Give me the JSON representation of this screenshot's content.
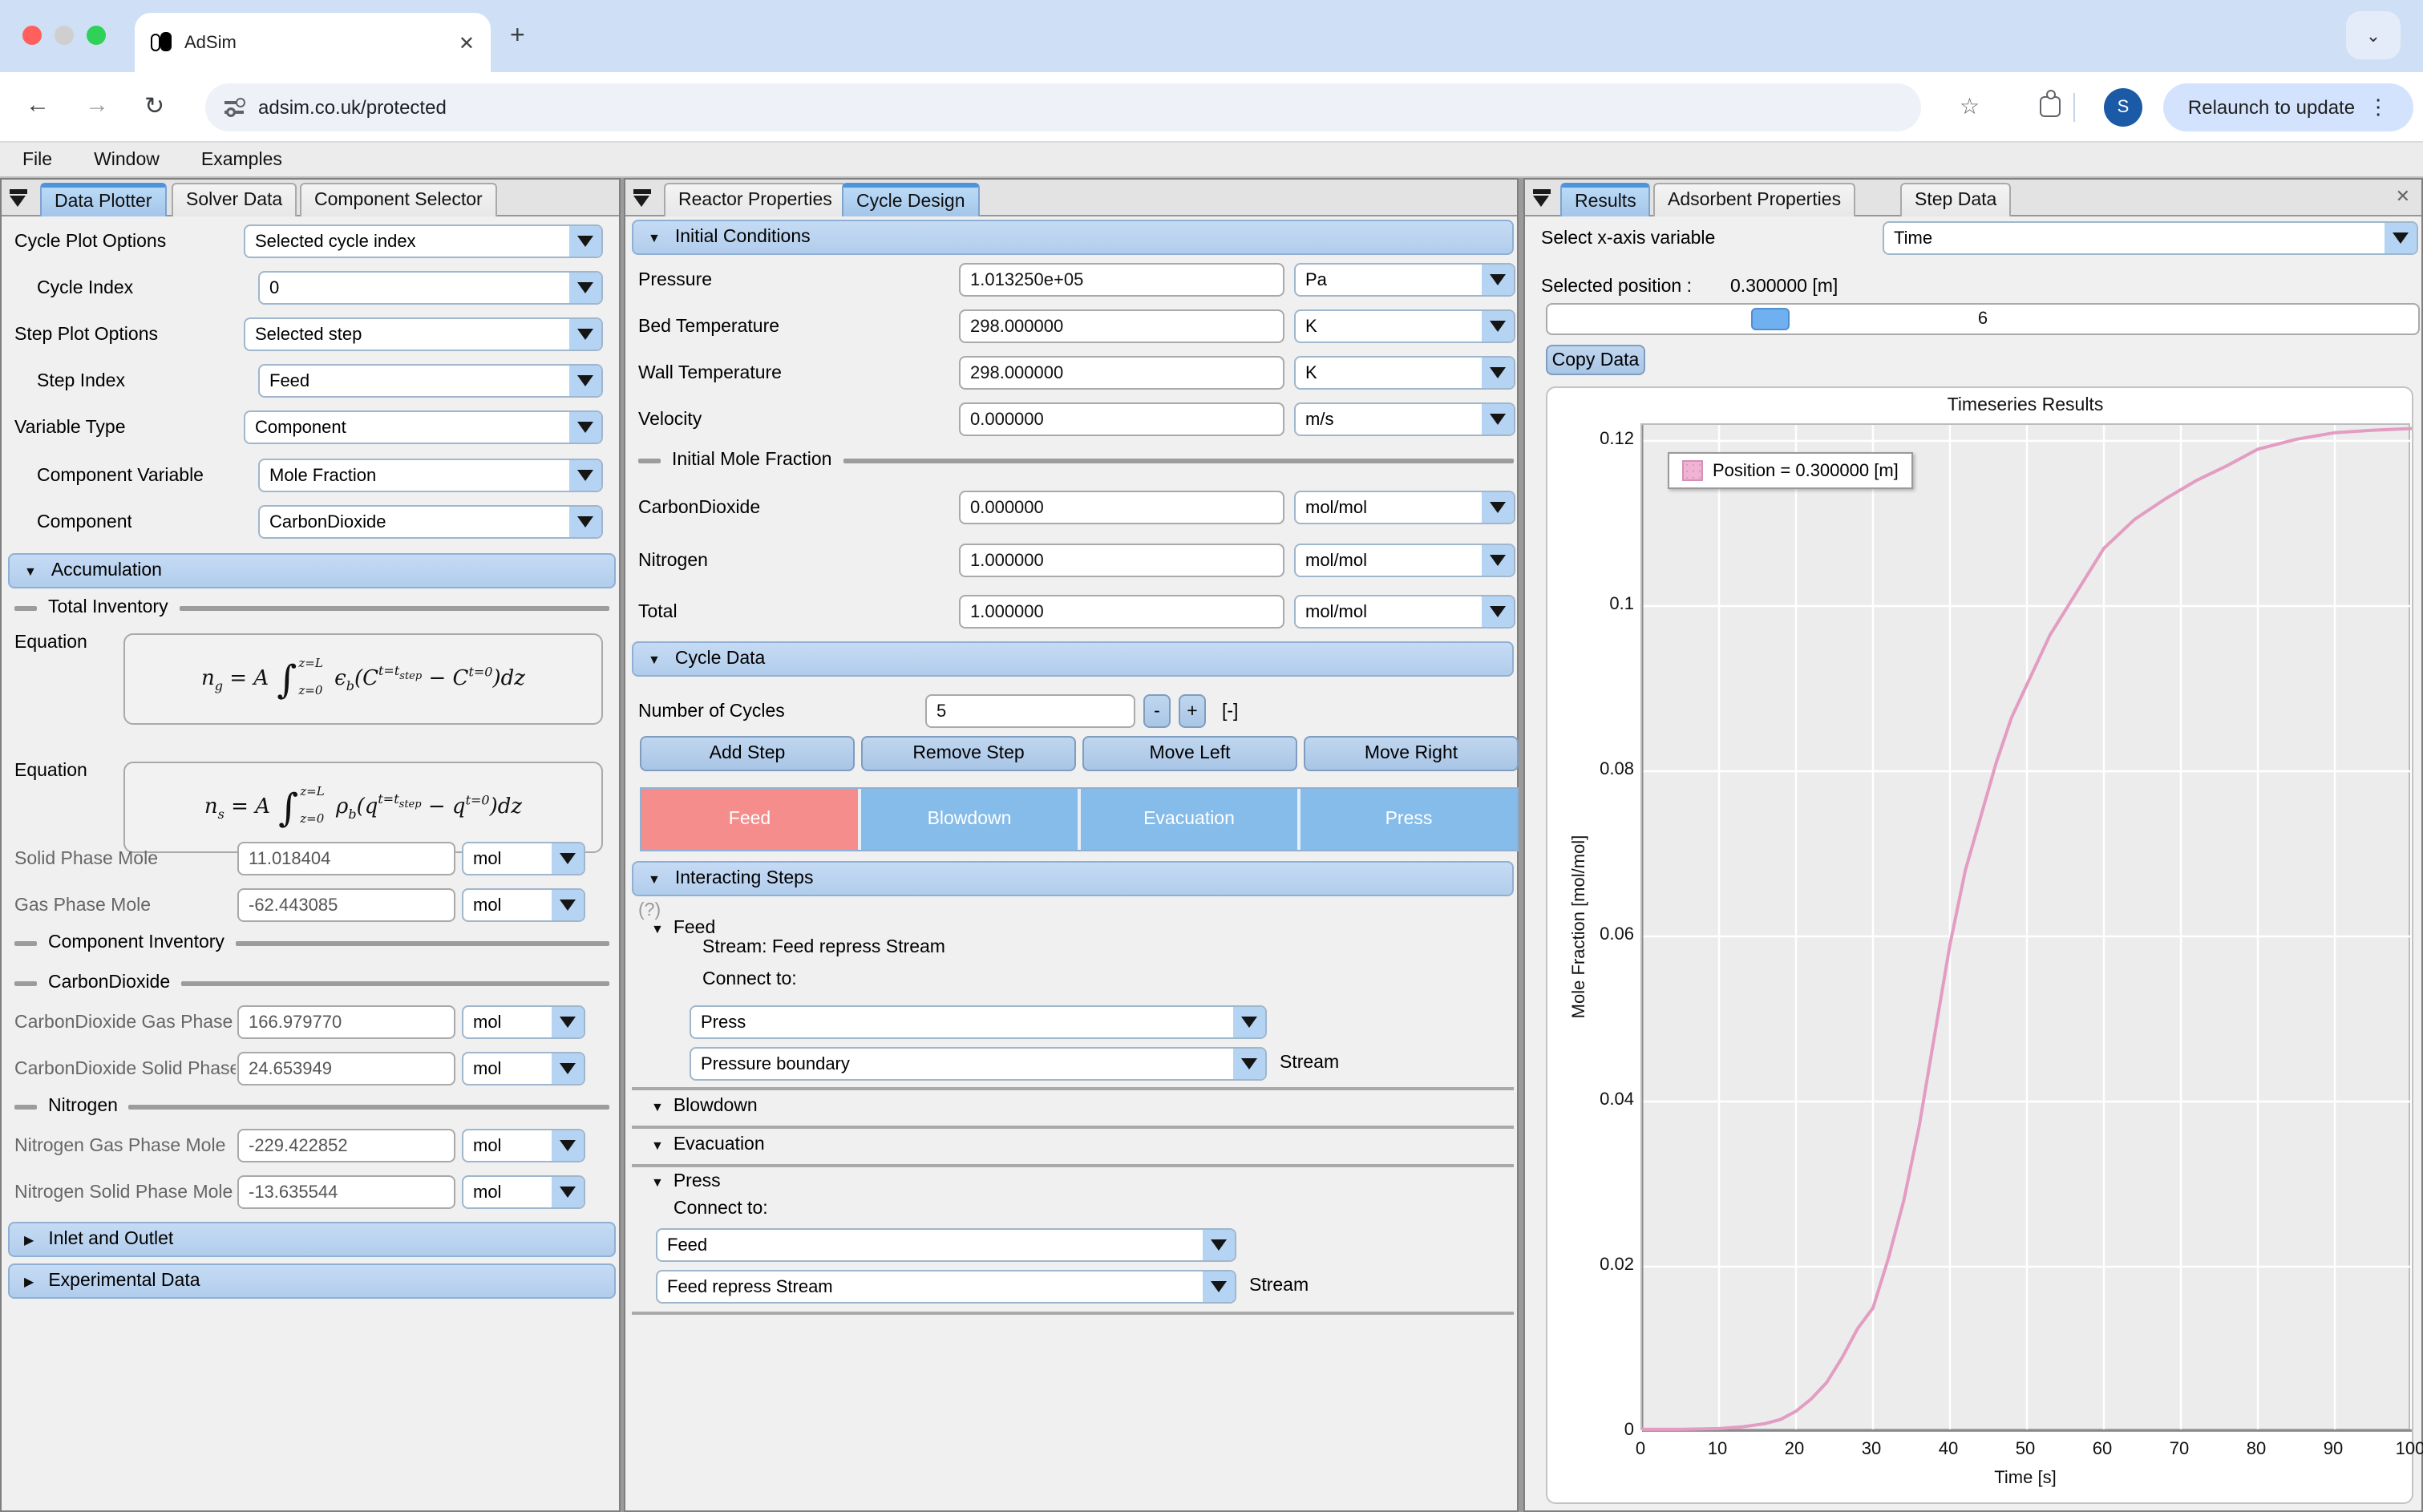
{
  "browser": {
    "tab_title": "AdSim",
    "close_tab": "✕",
    "new_tab": "+",
    "chevron": "⌄",
    "url": "adsim.co.uk/protected",
    "back": "←",
    "forward": "→",
    "refresh": "↻",
    "star": "☆",
    "avatar": "S",
    "relaunch": "Relaunch to update",
    "kebab": "⋮"
  },
  "menu": {
    "file": "File",
    "window": "Window",
    "examples": "Examples"
  },
  "left": {
    "tabs": [
      "Data Plotter",
      "Solver Data",
      "Component Selector"
    ],
    "fields": [
      {
        "label": "Cycle Plot Options",
        "value": "Selected cycle index"
      },
      {
        "label": "Cycle Index",
        "value": "0"
      },
      {
        "label": "Step Plot Options",
        "value": "Selected step"
      },
      {
        "label": "Step Index",
        "value": "Feed"
      },
      {
        "label": "Variable Type",
        "value": "Component"
      },
      {
        "label": "Component Variable",
        "value": "Mole Fraction"
      },
      {
        "label": "Component",
        "value": "CarbonDioxide"
      }
    ],
    "accumulation": "Accumulation",
    "total_inventory": "Total Inventory",
    "equation_label": "Equation",
    "eq1": {
      "lhs": "n",
      "lhs_sub": "g",
      "rel": " = A",
      "int_sup": "z=L",
      "int_sub": "z=0",
      "t1": "ϵ",
      "t1_sub": "b",
      "t2": "(C",
      "t2_sup": "t=t",
      "t2_sup_sub": "step",
      "t3": " − C",
      "t3_sup": "t=0",
      "t4": ")dz"
    },
    "eq2": {
      "lhs": "n",
      "lhs_sub": "s",
      "rel": " = A",
      "int_sup": "z=L",
      "int_sub": "z=0",
      "t1": "ρ",
      "t1_sub": "b",
      "t2": "(q",
      "t2_sup": "t=t",
      "t2_sup_sub": "step",
      "t3": " − q",
      "t3_sup": "t=0",
      "t4": ")dz"
    },
    "mole_rows": [
      {
        "label": "Solid Phase Mole",
        "value": "11.018404",
        "unit": "mol"
      },
      {
        "label": "Gas Phase Mole",
        "value": "-62.443085",
        "unit": "mol"
      }
    ],
    "component_inventory": "Component Inventory",
    "co2_section": "CarbonDioxide",
    "co2_rows": [
      {
        "label": "CarbonDioxide Gas Phase Mole",
        "value": "166.979770",
        "unit": "mol"
      },
      {
        "label": "CarbonDioxide Solid Phase Mole",
        "value": "24.653949",
        "unit": "mol"
      }
    ],
    "n2_section": "Nitrogen",
    "n2_rows": [
      {
        "label": "Nitrogen Gas Phase Mole",
        "value": "-229.422852",
        "unit": "mol"
      },
      {
        "label": "Nitrogen Solid Phase Mole",
        "value": "-13.635544",
        "unit": "mol"
      }
    ],
    "inlet_outlet": "Inlet and Outlet",
    "experimental_data": "Experimental Data"
  },
  "middle": {
    "tabs": [
      "Reactor Properties",
      "Cycle Design"
    ],
    "initial_conditions": "Initial Conditions",
    "ic_rows": [
      {
        "label": "Pressure",
        "value": "1.013250e+05",
        "unit": "Pa"
      },
      {
        "label": "Bed Temperature",
        "value": "298.000000",
        "unit": "K"
      },
      {
        "label": "Wall Temperature",
        "value": "298.000000",
        "unit": "K"
      },
      {
        "label": "Velocity",
        "value": "0.000000",
        "unit": "m/s"
      }
    ],
    "initial_mole_fraction": "Initial Mole Fraction",
    "imf_rows": [
      {
        "label": "CarbonDioxide",
        "value": "0.000000",
        "unit": "mol/mol"
      },
      {
        "label": "Nitrogen",
        "value": "1.000000",
        "unit": "mol/mol"
      },
      {
        "label": "Total",
        "value": "1.000000",
        "unit": "mol/mol"
      }
    ],
    "cycle_data": "Cycle Data",
    "cycles": {
      "label": "Number of Cycles",
      "value": "5",
      "minus": "-",
      "plus": "+",
      "unit": "[-]"
    },
    "step_buttons": [
      "Add Step",
      "Remove Step",
      "Move Left",
      "Move Right"
    ],
    "steps": [
      "Feed",
      "Blowdown",
      "Evacuation",
      "Press"
    ],
    "step_colors": {
      "selected": "#f58d8d",
      "normal": "#85bce9"
    },
    "interacting_steps": "Interacting Steps",
    "help": "(?)",
    "feed_section": {
      "title": "Feed",
      "stream_line": "Stream: Feed repress Stream",
      "connect_label": "Connect to:",
      "step_select": "Press",
      "stream_select": "Pressure boundary",
      "stream_suffix": "Stream"
    },
    "blowdown_title": "Blowdown",
    "evacuation_title": "Evacuation",
    "press_section": {
      "title": "Press",
      "connect_label": "Connect to:",
      "step_select": "Feed",
      "stream_select": "Feed repress Stream",
      "stream_suffix": "Stream"
    }
  },
  "right": {
    "tabs": [
      "Results",
      "Adsorbent Properties",
      "Step Data"
    ],
    "close": "✕",
    "xaxis_label": "Select x-axis variable",
    "xaxis_value": "Time",
    "selected_position_label": "Selected position :",
    "selected_position_value": "0.300000 [m]",
    "slider_value": "6",
    "copy_data": "Copy Data",
    "chart_data": {
      "type": "line",
      "title": "Timeseries Results",
      "xlabel": "Time [s]",
      "ylabel": "Mole Fraction [mol/mol]",
      "xlim": [
        0,
        100
      ],
      "ylim": [
        0,
        0.12
      ],
      "xticks": [
        0,
        10,
        20,
        30,
        40,
        50,
        60,
        70,
        80,
        90,
        100
      ],
      "yticks": [
        0,
        0.02,
        0.04,
        0.06,
        0.08,
        0.1,
        0.12
      ],
      "grid": true,
      "legend_position": "upper-left",
      "series": [
        {
          "name": "Position = 0.300000 [m]",
          "color": "#e39cc2",
          "x": [
            0,
            5,
            10,
            13,
            16,
            18,
            20,
            22,
            24,
            26,
            28,
            30,
            32,
            34,
            36,
            38,
            40,
            42,
            44,
            46,
            48,
            50,
            53,
            56,
            60,
            64,
            68,
            72,
            76,
            80,
            85,
            90,
            95,
            100
          ],
          "y": [
            0.0003,
            0.0003,
            0.0004,
            0.0006,
            0.001,
            0.0015,
            0.0025,
            0.004,
            0.006,
            0.009,
            0.0125,
            0.015,
            0.021,
            0.028,
            0.037,
            0.048,
            0.059,
            0.068,
            0.0745,
            0.081,
            0.0865,
            0.0905,
            0.0965,
            0.101,
            0.107,
            0.1105,
            0.113,
            0.1152,
            0.117,
            0.119,
            0.1202,
            0.121,
            0.1213,
            0.1215
          ]
        }
      ]
    }
  }
}
